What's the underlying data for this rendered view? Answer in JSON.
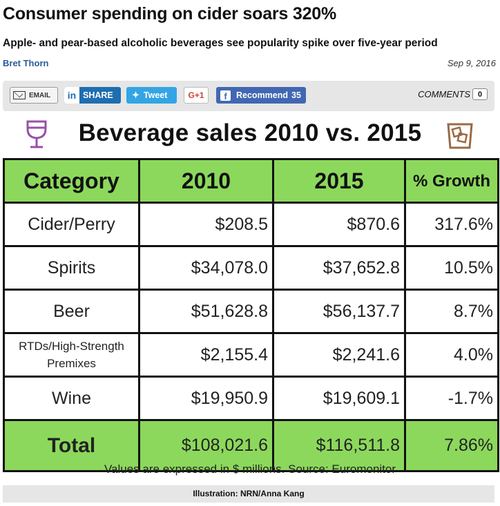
{
  "article": {
    "headline": "Consumer spending on cider soars 320%",
    "subhead": "Apple- and pear-based alcoholic beverages see popularity spike over five-year period",
    "author": "Bret Thorn",
    "date": "Sep 9, 2016"
  },
  "share_bar": {
    "email_label": "EMAIL",
    "linkedin_label": "SHARE",
    "linkedin_logo": "in",
    "twitter_label": "Tweet",
    "google_label": "G+1",
    "facebook_label": "Recommend",
    "facebook_count": "35",
    "comments_label": "COMMENTS",
    "comments_count": "0"
  },
  "infographic": {
    "title": "Beverage sales 2010 vs. 2015",
    "icons": [
      "wine-glass-icon",
      "ice-glass-icon"
    ],
    "colors": {
      "header_green": "#8cd85c",
      "glass_purple": "#9a4fa8",
      "ice_brown": "#9a6a45"
    },
    "columns": [
      "Category",
      "2010",
      "2015",
      "% Growth"
    ],
    "rows": [
      {
        "category": "Cider/Perry",
        "y2010": "$208.5",
        "y2015": "$870.6",
        "growth": "317.6%"
      },
      {
        "category": "Spirits",
        "y2010": "$34,078.0",
        "y2015": "$37,652.8",
        "growth": "10.5%"
      },
      {
        "category": "Beer",
        "y2010": "$51,628.8",
        "y2015": "$56,137.7",
        "growth": "8.7%"
      },
      {
        "category_line1": "RTDs/High-Strength",
        "category_line2": "Premixes",
        "y2010": "$2,155.4",
        "y2015": "$2,241.6",
        "growth": "4.0%"
      },
      {
        "category": "Wine",
        "y2010": "$19,950.9",
        "y2015": "$19,609.1",
        "growth": "-1.7%"
      }
    ],
    "total": {
      "category": "Total",
      "y2010": "$108,021.6",
      "y2015": "$116,511.8",
      "growth": "7.86%"
    },
    "note": "Values are expressed in $ millions. Source: Euromonitor"
  },
  "caption": "Illustration: NRN/Anna Kang"
}
